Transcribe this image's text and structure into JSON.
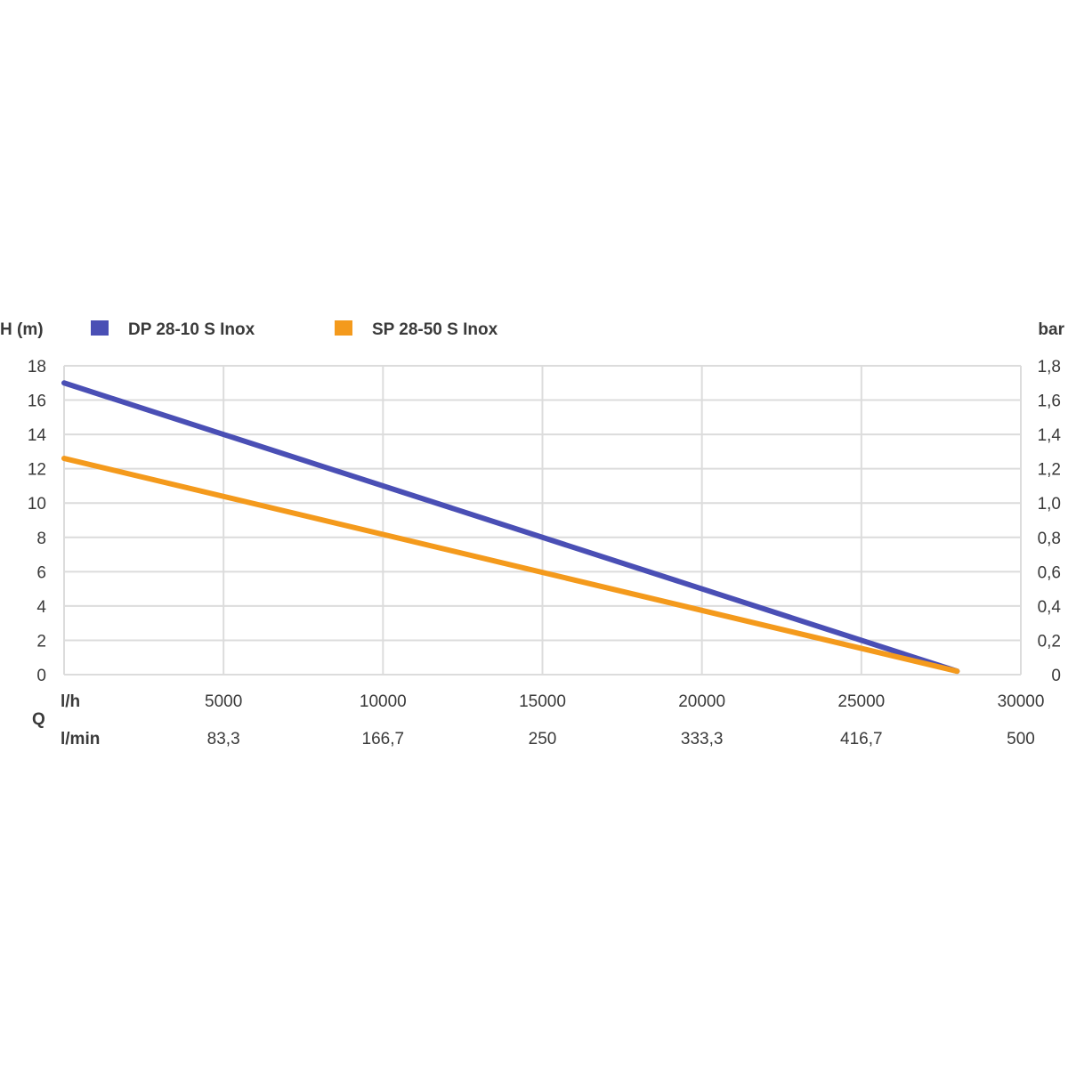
{
  "chart_data": {
    "type": "line",
    "left_axis_label": "H (m)",
    "right_axis_label": "bar",
    "q_label": "Q",
    "row_label_lh": "l/h",
    "row_label_lmin": "l/min",
    "x_range": [
      0,
      30000
    ],
    "y_range": [
      0,
      18
    ],
    "y_ticks": [
      "0",
      "2",
      "4",
      "6",
      "8",
      "10",
      "12",
      "14",
      "16",
      "18"
    ],
    "bar_ticks": [
      "0",
      "0,2",
      "0,4",
      "0,6",
      "0,8",
      "1,0",
      "1,2",
      "1,4",
      "1,6",
      "1,8"
    ],
    "x_ticks_lh": [
      "5000",
      "10000",
      "15000",
      "20000",
      "25000",
      "30000"
    ],
    "x_ticks_lmin": [
      "83,3",
      "166,7",
      "250",
      "333,3",
      "416,7",
      "500"
    ],
    "grid": true,
    "legend_position": "top",
    "series": [
      {
        "name": "DP 28-10 S Inox",
        "color": "#4a4fb5",
        "points": [
          [
            0,
            17
          ],
          [
            28000,
            0.2
          ]
        ]
      },
      {
        "name": "SP 28-50 S Inox",
        "color": "#f49a1c",
        "points": [
          [
            0,
            12.6
          ],
          [
            28000,
            0.2
          ]
        ]
      }
    ]
  }
}
